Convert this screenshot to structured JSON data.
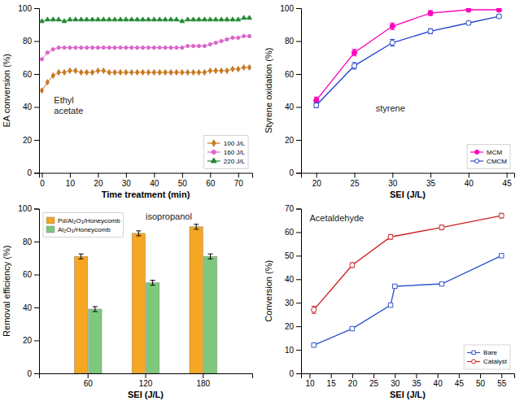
{
  "chart_data": [
    {
      "type": "line",
      "xlabel": "Time treatment (min)",
      "ylabel": "EA conversion (%)",
      "annotation": "Ethyl\nacetate",
      "xlim": [
        -1,
        75
      ],
      "ylim": [
        0,
        100
      ],
      "xticks": [
        0,
        10,
        20,
        30,
        40,
        50,
        60,
        70
      ],
      "yticks": [
        0,
        20,
        40,
        60,
        80,
        100
      ],
      "grid": false,
      "legend": "lower right",
      "series": [
        {
          "name": "100 J/L",
          "color": "#c87820",
          "marker": "diamond",
          "x": [
            0,
            2,
            4,
            6,
            8,
            10,
            12,
            14,
            16,
            18,
            20,
            22,
            24,
            26,
            28,
            30,
            32,
            34,
            36,
            38,
            40,
            42,
            44,
            46,
            48,
            50,
            52,
            54,
            56,
            58,
            60,
            62,
            64,
            66,
            68,
            70,
            72,
            74
          ],
          "values": [
            50,
            55,
            59,
            61,
            61,
            62,
            62,
            61,
            61,
            61,
            62,
            62,
            61,
            61,
            61,
            61,
            61,
            61,
            61,
            61,
            61,
            61,
            61,
            61,
            61,
            61,
            61,
            61,
            61,
            61,
            62,
            62,
            62,
            62,
            63,
            63,
            64,
            64
          ]
        },
        {
          "name": "160 J/L",
          "color": "#dd66cc",
          "marker": "circle",
          "x": [
            0,
            2,
            4,
            6,
            8,
            10,
            12,
            14,
            16,
            18,
            20,
            22,
            24,
            26,
            28,
            30,
            32,
            34,
            36,
            38,
            40,
            42,
            44,
            46,
            48,
            50,
            52,
            54,
            56,
            58,
            60,
            62,
            64,
            66,
            68,
            70,
            72,
            74
          ],
          "values": [
            69,
            73,
            75,
            76,
            76,
            76,
            76,
            76,
            76,
            76,
            76,
            76,
            76,
            76,
            76,
            76,
            76,
            76,
            76,
            76,
            76,
            76,
            76,
            76,
            76,
            76,
            77,
            77,
            77,
            77,
            78,
            79,
            80,
            81,
            82,
            82,
            83,
            83
          ]
        },
        {
          "name": "220 J/L",
          "color": "#228833",
          "marker": "triangle",
          "x": [
            0,
            2,
            4,
            6,
            8,
            10,
            12,
            14,
            16,
            18,
            20,
            22,
            24,
            26,
            28,
            30,
            32,
            34,
            36,
            38,
            40,
            42,
            44,
            46,
            48,
            50,
            52,
            54,
            56,
            58,
            60,
            62,
            64,
            66,
            68,
            70,
            72,
            74
          ],
          "values": [
            92,
            93,
            93,
            93,
            92,
            93,
            93,
            93,
            93,
            93,
            93,
            93,
            93,
            93,
            93,
            93,
            93,
            93,
            93,
            93,
            93,
            93,
            93,
            93,
            93,
            92,
            93,
            93,
            93,
            93,
            93,
            93,
            93,
            93,
            93,
            93,
            94,
            94
          ]
        }
      ]
    },
    {
      "type": "line",
      "xlabel": "SEI (J/L)",
      "ylabel": "Styrene oxidation (%)",
      "annotation": "styrene",
      "xlim": [
        18,
        46
      ],
      "ylim": [
        0,
        100
      ],
      "xticks": [
        20,
        25,
        30,
        35,
        40,
        45
      ],
      "yticks": [
        0,
        20,
        40,
        60,
        80,
        100
      ],
      "grid": false,
      "legend": "lower right",
      "series": [
        {
          "name": "MCM",
          "color": "#ff00bb",
          "marker": "circle",
          "x": [
            20,
            25,
            30,
            35,
            40,
            44
          ],
          "values": [
            44,
            73,
            89,
            97,
            99,
            99
          ],
          "yerr": [
            2,
            2,
            2,
            1.5,
            1,
            1
          ]
        },
        {
          "name": "CMCM",
          "color": "#2244cc",
          "marker": "circle-open",
          "x": [
            20,
            25,
            30,
            35,
            40,
            44
          ],
          "values": [
            41,
            65,
            79,
            86,
            91,
            95
          ],
          "yerr": [
            1.5,
            2,
            2,
            1.5,
            1,
            1
          ]
        }
      ]
    },
    {
      "type": "bar",
      "xlabel": "SEI (J/L)",
      "ylabel": "Removal efficiency (%)",
      "annotation": "isopropanol",
      "categories": [
        "60",
        "120",
        "180"
      ],
      "ylim": [
        0,
        100
      ],
      "yticks": [
        0,
        20,
        40,
        60,
        80,
        100
      ],
      "grid": false,
      "legend": "upper left",
      "series": [
        {
          "name": "Pd/Al₂O₃/Honeycomb",
          "color": "#f5a623",
          "values": [
            71,
            85,
            89
          ],
          "yerr": [
            1.5,
            1.5,
            1.5
          ]
        },
        {
          "name": "Al₂O₃/Honeycomb",
          "color": "#7dc87d",
          "values": [
            39,
            55,
            71
          ],
          "yerr": [
            1.5,
            1.5,
            1.5
          ]
        }
      ]
    },
    {
      "type": "line",
      "xlabel": "SEI (J/L)",
      "ylabel": "Conversion (%)",
      "annotation": "Acetaldehyde",
      "xlim": [
        8,
        58
      ],
      "ylim": [
        0,
        70
      ],
      "xticks": [
        10,
        15,
        20,
        25,
        30,
        35,
        40,
        45,
        50,
        55
      ],
      "yticks": [
        0,
        10,
        20,
        30,
        40,
        50,
        60,
        70
      ],
      "grid": false,
      "legend": "lower right",
      "series": [
        {
          "name": "Bare",
          "color": "#3355cc",
          "marker": "square-open",
          "x": [
            11,
            20,
            29,
            30,
            41,
            55
          ],
          "values": [
            12,
            19,
            29,
            37,
            38,
            50
          ]
        },
        {
          "name": "Catalyst",
          "color": "#cc2222",
          "marker": "circle-open",
          "x": [
            11,
            20,
            29,
            41,
            55
          ],
          "values": [
            27,
            46,
            58,
            62,
            67
          ],
          "yerr": [
            1.5,
            1,
            1,
            1,
            1
          ]
        }
      ]
    }
  ]
}
